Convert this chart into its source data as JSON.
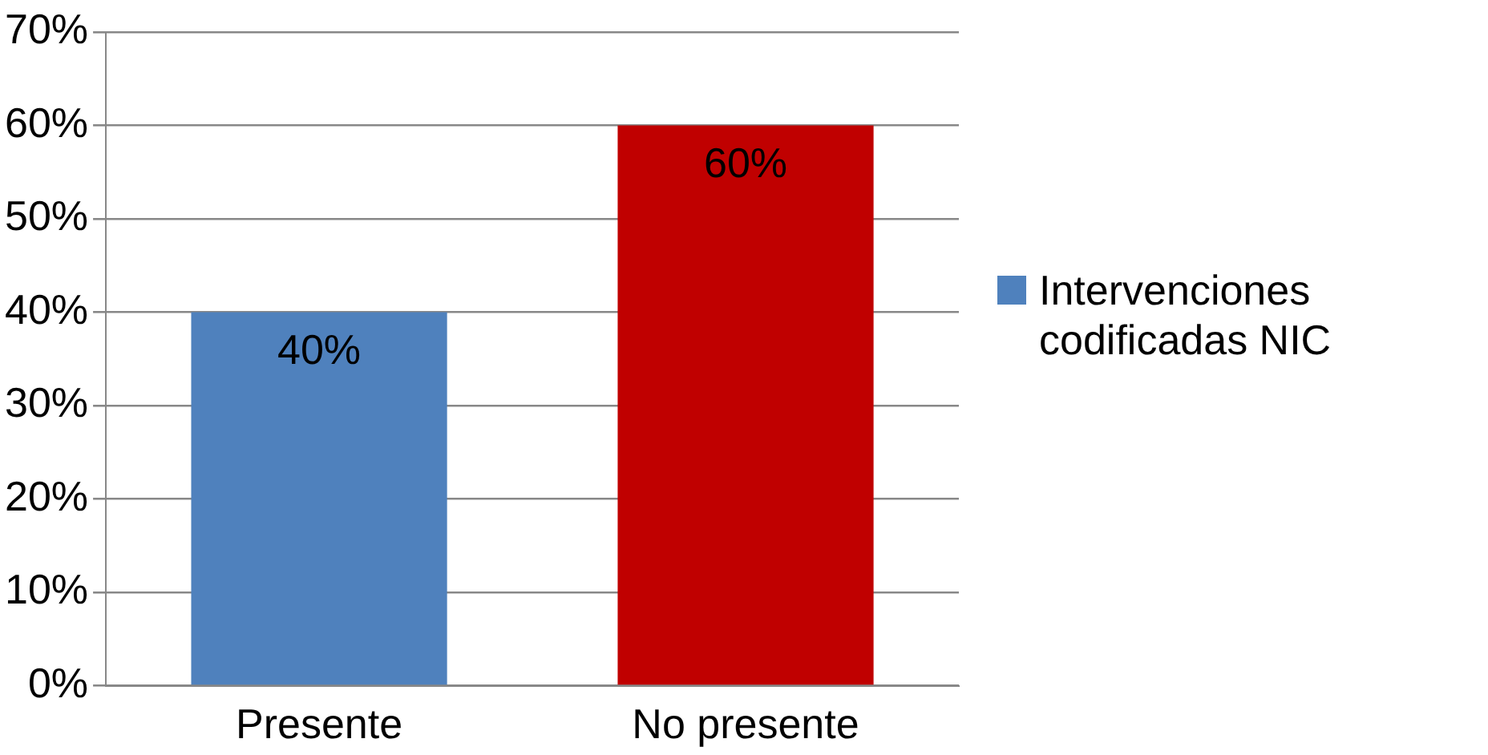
{
  "chart_data": {
    "type": "bar",
    "categories": [
      "Presente",
      "No presente"
    ],
    "series": [
      {
        "name": "Intervenciones codificadas NIC",
        "color": "#4f81bd",
        "colors": [
          "#4f81bd",
          "#c00000"
        ],
        "values": [
          40,
          60
        ],
        "value_labels": [
          "40%",
          "60%"
        ]
      }
    ],
    "ylim": [
      0,
      70
    ],
    "yticks": [
      {
        "value": 0,
        "label": "0%"
      },
      {
        "value": 10,
        "label": "10%"
      },
      {
        "value": 20,
        "label": "20%"
      },
      {
        "value": 30,
        "label": "30%"
      },
      {
        "value": 40,
        "label": "40%"
      },
      {
        "value": 50,
        "label": "50%"
      },
      {
        "value": 60,
        "label": "60%"
      },
      {
        "value": 70,
        "label": "70%"
      }
    ],
    "grid": "y",
    "legend": "right"
  }
}
